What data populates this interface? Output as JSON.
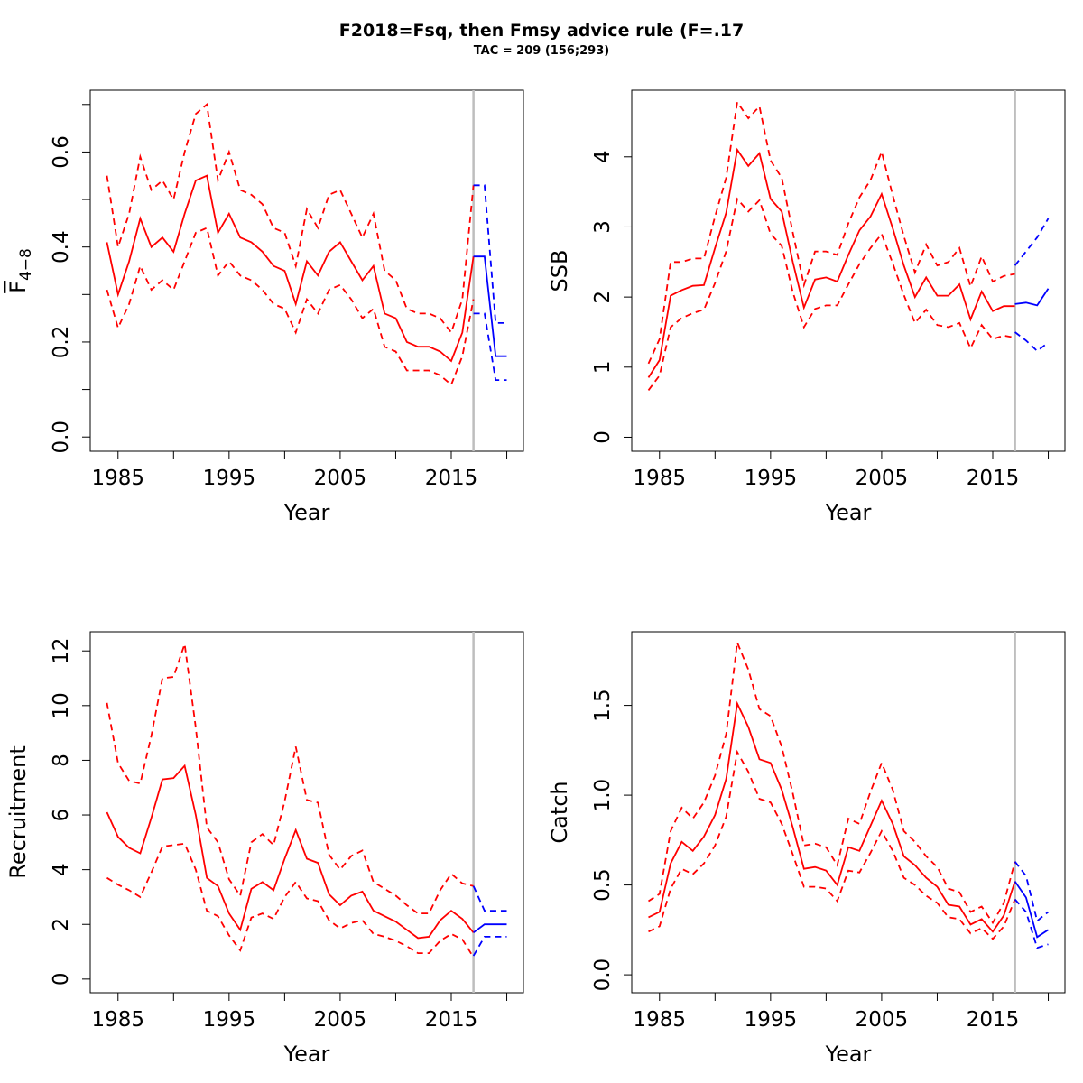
{
  "title": "F2018=Fsq, then  Fmsy advice rule (F=.17",
  "subtitle": "TAC = 209 (156;293)",
  "colors": {
    "historic": "#ff0000",
    "forecast": "#0000ff",
    "divider": "#bebebe",
    "frame": "#000000"
  },
  "chart_data": [
    {
      "type": "line",
      "xlabel": "Year",
      "ylabel": "F4-8",
      "ylabel_main": "F",
      "ylabel_sub": "4−8",
      "xlim": [
        1982.5,
        2021.5
      ],
      "ylim": [
        -0.03,
        0.73
      ],
      "x_ticks": [
        1985,
        1990,
        1995,
        2000,
        2005,
        2010,
        2015,
        2020
      ],
      "x_tick_labels": [
        "1985",
        "1995",
        "2005",
        "2015"
      ],
      "x_tick_label_years": [
        1985,
        1995,
        2005,
        2015
      ],
      "y_ticks": [
        0.0,
        0.1,
        0.2,
        0.3,
        0.4,
        0.5,
        0.6,
        0.7
      ],
      "y_tick_labels": [
        "0.0",
        "0.2",
        "0.4",
        "0.6"
      ],
      "y_tick_label_values": [
        0.0,
        0.2,
        0.4,
        0.6
      ],
      "divider_year": 2017,
      "historic": {
        "years": [
          1984,
          1985,
          1986,
          1987,
          1988,
          1989,
          1990,
          1991,
          1992,
          1993,
          1994,
          1995,
          1996,
          1997,
          1998,
          1999,
          2000,
          2001,
          2002,
          2003,
          2004,
          2005,
          2006,
          2007,
          2008,
          2009,
          2010,
          2011,
          2012,
          2013,
          2014,
          2015,
          2016,
          2017
        ],
        "estimate": [
          0.41,
          0.3,
          0.37,
          0.46,
          0.4,
          0.42,
          0.39,
          0.47,
          0.54,
          0.55,
          0.43,
          0.47,
          0.42,
          0.41,
          0.39,
          0.36,
          0.35,
          0.28,
          0.37,
          0.34,
          0.39,
          0.41,
          0.37,
          0.33,
          0.36,
          0.26,
          0.25,
          0.2,
          0.19,
          0.19,
          0.18,
          0.16,
          0.22,
          0.38
        ],
        "lower": [
          0.31,
          0.23,
          0.28,
          0.36,
          0.31,
          0.33,
          0.31,
          0.37,
          0.43,
          0.44,
          0.34,
          0.37,
          0.34,
          0.33,
          0.31,
          0.28,
          0.27,
          0.22,
          0.29,
          0.26,
          0.31,
          0.32,
          0.29,
          0.25,
          0.27,
          0.19,
          0.18,
          0.14,
          0.14,
          0.14,
          0.13,
          0.11,
          0.17,
          0.29
        ],
        "upper": [
          0.55,
          0.4,
          0.47,
          0.59,
          0.52,
          0.54,
          0.5,
          0.6,
          0.68,
          0.7,
          0.54,
          0.6,
          0.52,
          0.51,
          0.49,
          0.44,
          0.43,
          0.36,
          0.48,
          0.44,
          0.51,
          0.52,
          0.47,
          0.42,
          0.47,
          0.35,
          0.33,
          0.27,
          0.26,
          0.26,
          0.25,
          0.22,
          0.29,
          0.53
        ]
      },
      "forecast": {
        "years": [
          2017,
          2018,
          2019,
          2020
        ],
        "estimate": [
          0.38,
          0.38,
          0.17,
          0.17
        ],
        "lower": [
          0.26,
          0.26,
          0.12,
          0.12
        ],
        "upper": [
          0.53,
          0.53,
          0.24,
          0.24
        ]
      }
    },
    {
      "type": "line",
      "xlabel": "Year",
      "ylabel": "SSB",
      "xlim": [
        1982.5,
        2021.5
      ],
      "ylim": [
        -0.2,
        4.95
      ],
      "x_ticks": [
        1985,
        1990,
        1995,
        2000,
        2005,
        2010,
        2015,
        2020
      ],
      "x_tick_labels": [
        "1985",
        "1995",
        "2005",
        "2015"
      ],
      "x_tick_label_years": [
        1985,
        1995,
        2005,
        2015
      ],
      "y_ticks": [
        0,
        1,
        2,
        3,
        4
      ],
      "y_tick_labels": [
        "0",
        "1",
        "2",
        "3",
        "4"
      ],
      "y_tick_label_values": [
        0,
        1,
        2,
        3,
        4
      ],
      "divider_year": 2017,
      "historic": {
        "years": [
          1984,
          1985,
          1986,
          1987,
          1988,
          1989,
          1990,
          1991,
          1992,
          1993,
          1994,
          1995,
          1996,
          1997,
          1998,
          1999,
          2000,
          2001,
          2002,
          2003,
          2004,
          2005,
          2006,
          2007,
          2008,
          2009,
          2010,
          2011,
          2012,
          2013,
          2014,
          2015,
          2016,
          2017
        ],
        "estimate": [
          0.85,
          1.1,
          2.02,
          2.1,
          2.16,
          2.17,
          2.7,
          3.2,
          4.1,
          3.87,
          4.05,
          3.4,
          3.22,
          2.5,
          1.85,
          2.25,
          2.28,
          2.22,
          2.6,
          2.95,
          3.15,
          3.47,
          2.98,
          2.45,
          2.0,
          2.28,
          2.02,
          2.02,
          2.18,
          1.68,
          2.08,
          1.8,
          1.87,
          1.87
        ],
        "lower": [
          0.67,
          0.88,
          1.57,
          1.7,
          1.77,
          1.82,
          2.2,
          2.65,
          3.4,
          3.22,
          3.38,
          2.9,
          2.73,
          2.07,
          1.57,
          1.83,
          1.88,
          1.88,
          2.18,
          2.47,
          2.7,
          2.9,
          2.48,
          2.03,
          1.63,
          1.82,
          1.6,
          1.57,
          1.63,
          1.27,
          1.6,
          1.4,
          1.45,
          1.42
        ],
        "upper": [
          1.05,
          1.4,
          2.5,
          2.5,
          2.55,
          2.55,
          3.15,
          3.7,
          4.78,
          4.55,
          4.72,
          3.95,
          3.7,
          2.92,
          2.17,
          2.65,
          2.65,
          2.6,
          3.05,
          3.42,
          3.67,
          4.07,
          3.45,
          2.87,
          2.35,
          2.75,
          2.45,
          2.5,
          2.7,
          2.15,
          2.58,
          2.22,
          2.3,
          2.33
        ]
      },
      "forecast": {
        "years": [
          2017,
          2018,
          2019,
          2020
        ],
        "estimate": [
          1.9,
          1.92,
          1.88,
          2.12
        ],
        "lower": [
          1.5,
          1.38,
          1.23,
          1.35
        ],
        "upper": [
          2.45,
          2.65,
          2.85,
          3.12
        ]
      }
    },
    {
      "type": "line",
      "xlabel": "Year",
      "ylabel": "Recruitment",
      "xlim": [
        1982.5,
        2021.5
      ],
      "ylim": [
        -0.5,
        12.7
      ],
      "x_ticks": [
        1985,
        1990,
        1995,
        2000,
        2005,
        2010,
        2015,
        2020
      ],
      "x_tick_labels": [
        "1985",
        "1995",
        "2005",
        "2015"
      ],
      "x_tick_label_years": [
        1985,
        1995,
        2005,
        2015
      ],
      "y_ticks": [
        0,
        2,
        4,
        6,
        8,
        10,
        12
      ],
      "y_tick_labels": [
        "0",
        "2",
        "4",
        "6",
        "8",
        "10",
        "12"
      ],
      "y_tick_label_values": [
        0,
        2,
        4,
        6,
        8,
        10,
        12
      ],
      "divider_year": 2017,
      "historic": {
        "years": [
          1984,
          1985,
          1986,
          1987,
          1988,
          1989,
          1990,
          1991,
          1992,
          1993,
          1994,
          1995,
          1996,
          1997,
          1998,
          1999,
          2000,
          2001,
          2002,
          2003,
          2004,
          2005,
          2006,
          2007,
          2008,
          2009,
          2010,
          2011,
          2012,
          2013,
          2014,
          2015,
          2016,
          2017
        ],
        "estimate": [
          6.1,
          5.2,
          4.8,
          4.6,
          5.9,
          7.3,
          7.35,
          7.8,
          6.0,
          3.7,
          3.4,
          2.4,
          1.8,
          3.3,
          3.55,
          3.25,
          4.4,
          5.45,
          4.4,
          4.25,
          3.1,
          2.7,
          3.05,
          3.2,
          2.5,
          2.3,
          2.1,
          1.8,
          1.5,
          1.55,
          2.15,
          2.5,
          2.2,
          1.7
        ],
        "lower": [
          3.7,
          3.45,
          3.25,
          3.0,
          3.9,
          4.85,
          4.9,
          4.95,
          4.0,
          2.5,
          2.3,
          1.6,
          1.05,
          2.25,
          2.4,
          2.2,
          3.0,
          3.55,
          2.95,
          2.85,
          2.15,
          1.85,
          2.05,
          2.15,
          1.65,
          1.55,
          1.4,
          1.2,
          0.95,
          0.95,
          1.4,
          1.65,
          1.45,
          0.8
        ],
        "upper": [
          10.1,
          7.9,
          7.25,
          7.15,
          8.9,
          11.0,
          11.05,
          12.25,
          9.2,
          5.55,
          5.0,
          3.65,
          3.05,
          5.0,
          5.3,
          4.9,
          6.5,
          8.5,
          6.55,
          6.45,
          4.55,
          4.0,
          4.5,
          4.7,
          3.55,
          3.3,
          3.05,
          2.7,
          2.4,
          2.4,
          3.25,
          3.85,
          3.5,
          3.4
        ]
      },
      "forecast": {
        "years": [
          2017,
          2018,
          2019,
          2020
        ],
        "estimate": [
          1.7,
          2.0,
          2.0,
          2.0
        ],
        "lower": [
          0.85,
          1.55,
          1.55,
          1.55
        ],
        "upper": [
          3.4,
          2.5,
          2.5,
          2.5
        ]
      }
    },
    {
      "type": "line",
      "xlabel": "Year",
      "ylabel": "Catch",
      "xlim": [
        1982.5,
        2021.5
      ],
      "ylim": [
        -0.1,
        1.91
      ],
      "x_ticks": [
        1985,
        1990,
        1995,
        2000,
        2005,
        2010,
        2015,
        2020
      ],
      "x_tick_labels": [
        "1985",
        "1995",
        "2005",
        "2015"
      ],
      "x_tick_label_years": [
        1985,
        1995,
        2005,
        2015
      ],
      "y_ticks": [
        0.0,
        0.5,
        1.0,
        1.5
      ],
      "y_tick_labels": [
        "0.0",
        "0.5",
        "1.0",
        "1.5"
      ],
      "y_tick_label_values": [
        0.0,
        0.5,
        1.0,
        1.5
      ],
      "divider_year": 2017,
      "historic": {
        "years": [
          1984,
          1985,
          1986,
          1987,
          1988,
          1989,
          1990,
          1991,
          1992,
          1993,
          1994,
          1995,
          1996,
          1997,
          1998,
          1999,
          2000,
          2001,
          2002,
          2003,
          2004,
          2005,
          2006,
          2007,
          2008,
          2009,
          2010,
          2011,
          2012,
          2013,
          2014,
          2015,
          2016,
          2017
        ],
        "estimate": [
          0.32,
          0.35,
          0.62,
          0.74,
          0.69,
          0.77,
          0.89,
          1.09,
          1.51,
          1.38,
          1.2,
          1.18,
          1.03,
          0.82,
          0.59,
          0.6,
          0.58,
          0.5,
          0.71,
          0.69,
          0.83,
          0.97,
          0.84,
          0.66,
          0.61,
          0.54,
          0.49,
          0.39,
          0.38,
          0.28,
          0.31,
          0.24,
          0.33,
          0.52
        ],
        "lower": [
          0.24,
          0.27,
          0.48,
          0.59,
          0.56,
          0.62,
          0.72,
          0.88,
          1.24,
          1.13,
          0.98,
          0.96,
          0.84,
          0.67,
          0.49,
          0.49,
          0.48,
          0.41,
          0.58,
          0.57,
          0.68,
          0.8,
          0.69,
          0.54,
          0.5,
          0.44,
          0.4,
          0.32,
          0.31,
          0.23,
          0.26,
          0.2,
          0.27,
          0.42
        ],
        "upper": [
          0.41,
          0.45,
          0.8,
          0.93,
          0.87,
          0.96,
          1.11,
          1.34,
          1.85,
          1.7,
          1.48,
          1.44,
          1.27,
          1.01,
          0.72,
          0.73,
          0.71,
          0.61,
          0.87,
          0.84,
          1.02,
          1.18,
          1.03,
          0.8,
          0.74,
          0.66,
          0.6,
          0.48,
          0.46,
          0.35,
          0.38,
          0.29,
          0.4,
          0.63
        ]
      },
      "forecast": {
        "years": [
          2017,
          2018,
          2019,
          2020
        ],
        "estimate": [
          0.52,
          0.43,
          0.21,
          0.25
        ],
        "lower": [
          0.42,
          0.35,
          0.15,
          0.17
        ],
        "upper": [
          0.63,
          0.55,
          0.3,
          0.35
        ]
      }
    }
  ]
}
